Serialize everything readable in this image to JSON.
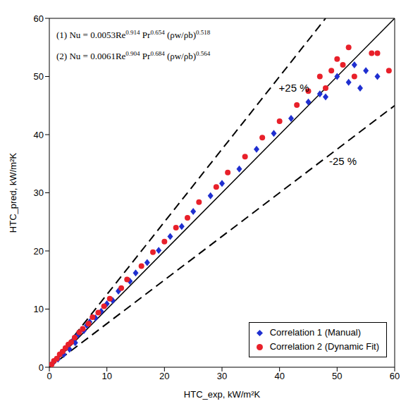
{
  "chart_data": {
    "type": "scatter",
    "x_label": "HTC_exp, kW/m²K",
    "y_label": "HTC_pred, kW/m²K",
    "xlim": [
      0,
      60
    ],
    "ylim": [
      0,
      60
    ],
    "xticks": [
      0,
      10,
      20,
      30,
      40,
      50,
      60
    ],
    "yticks": [
      0,
      10,
      20,
      30,
      40,
      50,
      60
    ],
    "grid": false,
    "legend": "lower right",
    "equations": [
      [
        "(1) Nu = 0.0053Re",
        "0.914",
        " Pr",
        "0.654",
        " (ρw/ρb)",
        "0.518"
      ],
      [
        "(2) Nu = 0.0061Re",
        "0.904",
        " Pr",
        "0.684",
        " (ρw/ρb)",
        "0.564"
      ]
    ],
    "reference_lines": [
      {
        "slope": 1.25,
        "label": "+25 %",
        "line_style": "dashed"
      },
      {
        "slope": 1,
        "line_style": "solid"
      },
      {
        "slope": 0.75,
        "label": "-25 %",
        "line_style": "dashed"
      }
    ],
    "series": [
      {
        "name": "Correlation 1 (Manual)",
        "color": "#1f2fd0",
        "marker": "diamond",
        "x": [
          0.5,
          1,
          1.5,
          2,
          2.5,
          3,
          3.5,
          4,
          4.5,
          5,
          6,
          6.5,
          7,
          8,
          9,
          10,
          11,
          12,
          14,
          15,
          17,
          19,
          21,
          23,
          25,
          28,
          30,
          33,
          36,
          39,
          42,
          45,
          47,
          48,
          50,
          52,
          53,
          54,
          55,
          57
        ],
        "values": [
          0.6,
          1.2,
          1.4,
          2.3,
          2.2,
          3.4,
          3.1,
          4.5,
          4.2,
          5.6,
          6.3,
          7.2,
          7.8,
          8.5,
          9.6,
          10.9,
          11.5,
          13.1,
          14.8,
          16.2,
          18,
          20.1,
          22.5,
          24.2,
          26.8,
          29.5,
          31.6,
          34.1,
          37.5,
          40.2,
          42.8,
          45.6,
          47,
          46.5,
          50,
          49,
          52,
          48,
          51,
          50
        ]
      },
      {
        "name": "Correlation 2 (Dynamic Fit)",
        "color": "#e8202a",
        "marker": "circle",
        "x": [
          0.4,
          0.8,
          1.3,
          1.8,
          2.3,
          2.8,
          3.3,
          3.8,
          4.4,
          5.2,
          5.8,
          6.8,
          7.5,
          8.5,
          9.5,
          10.5,
          12.5,
          13.5,
          16,
          18,
          20,
          22,
          24,
          26,
          29,
          31,
          34,
          37,
          40,
          43,
          45,
          47,
          48,
          49,
          50,
          51,
          52,
          53,
          56,
          57,
          59
        ],
        "values": [
          0.5,
          1.1,
          1.5,
          2.2,
          2.7,
          3.3,
          3.9,
          4.3,
          5.1,
          6,
          6.6,
          7.5,
          8.6,
          9.4,
          10.5,
          11.8,
          13.6,
          15.1,
          17.4,
          19.8,
          21.6,
          24,
          25.7,
          28.4,
          31,
          33.5,
          36.2,
          39.5,
          42.3,
          45.1,
          47.5,
          50,
          48,
          51,
          53,
          52,
          55,
          50,
          54,
          54,
          51
        ]
      }
    ]
  }
}
